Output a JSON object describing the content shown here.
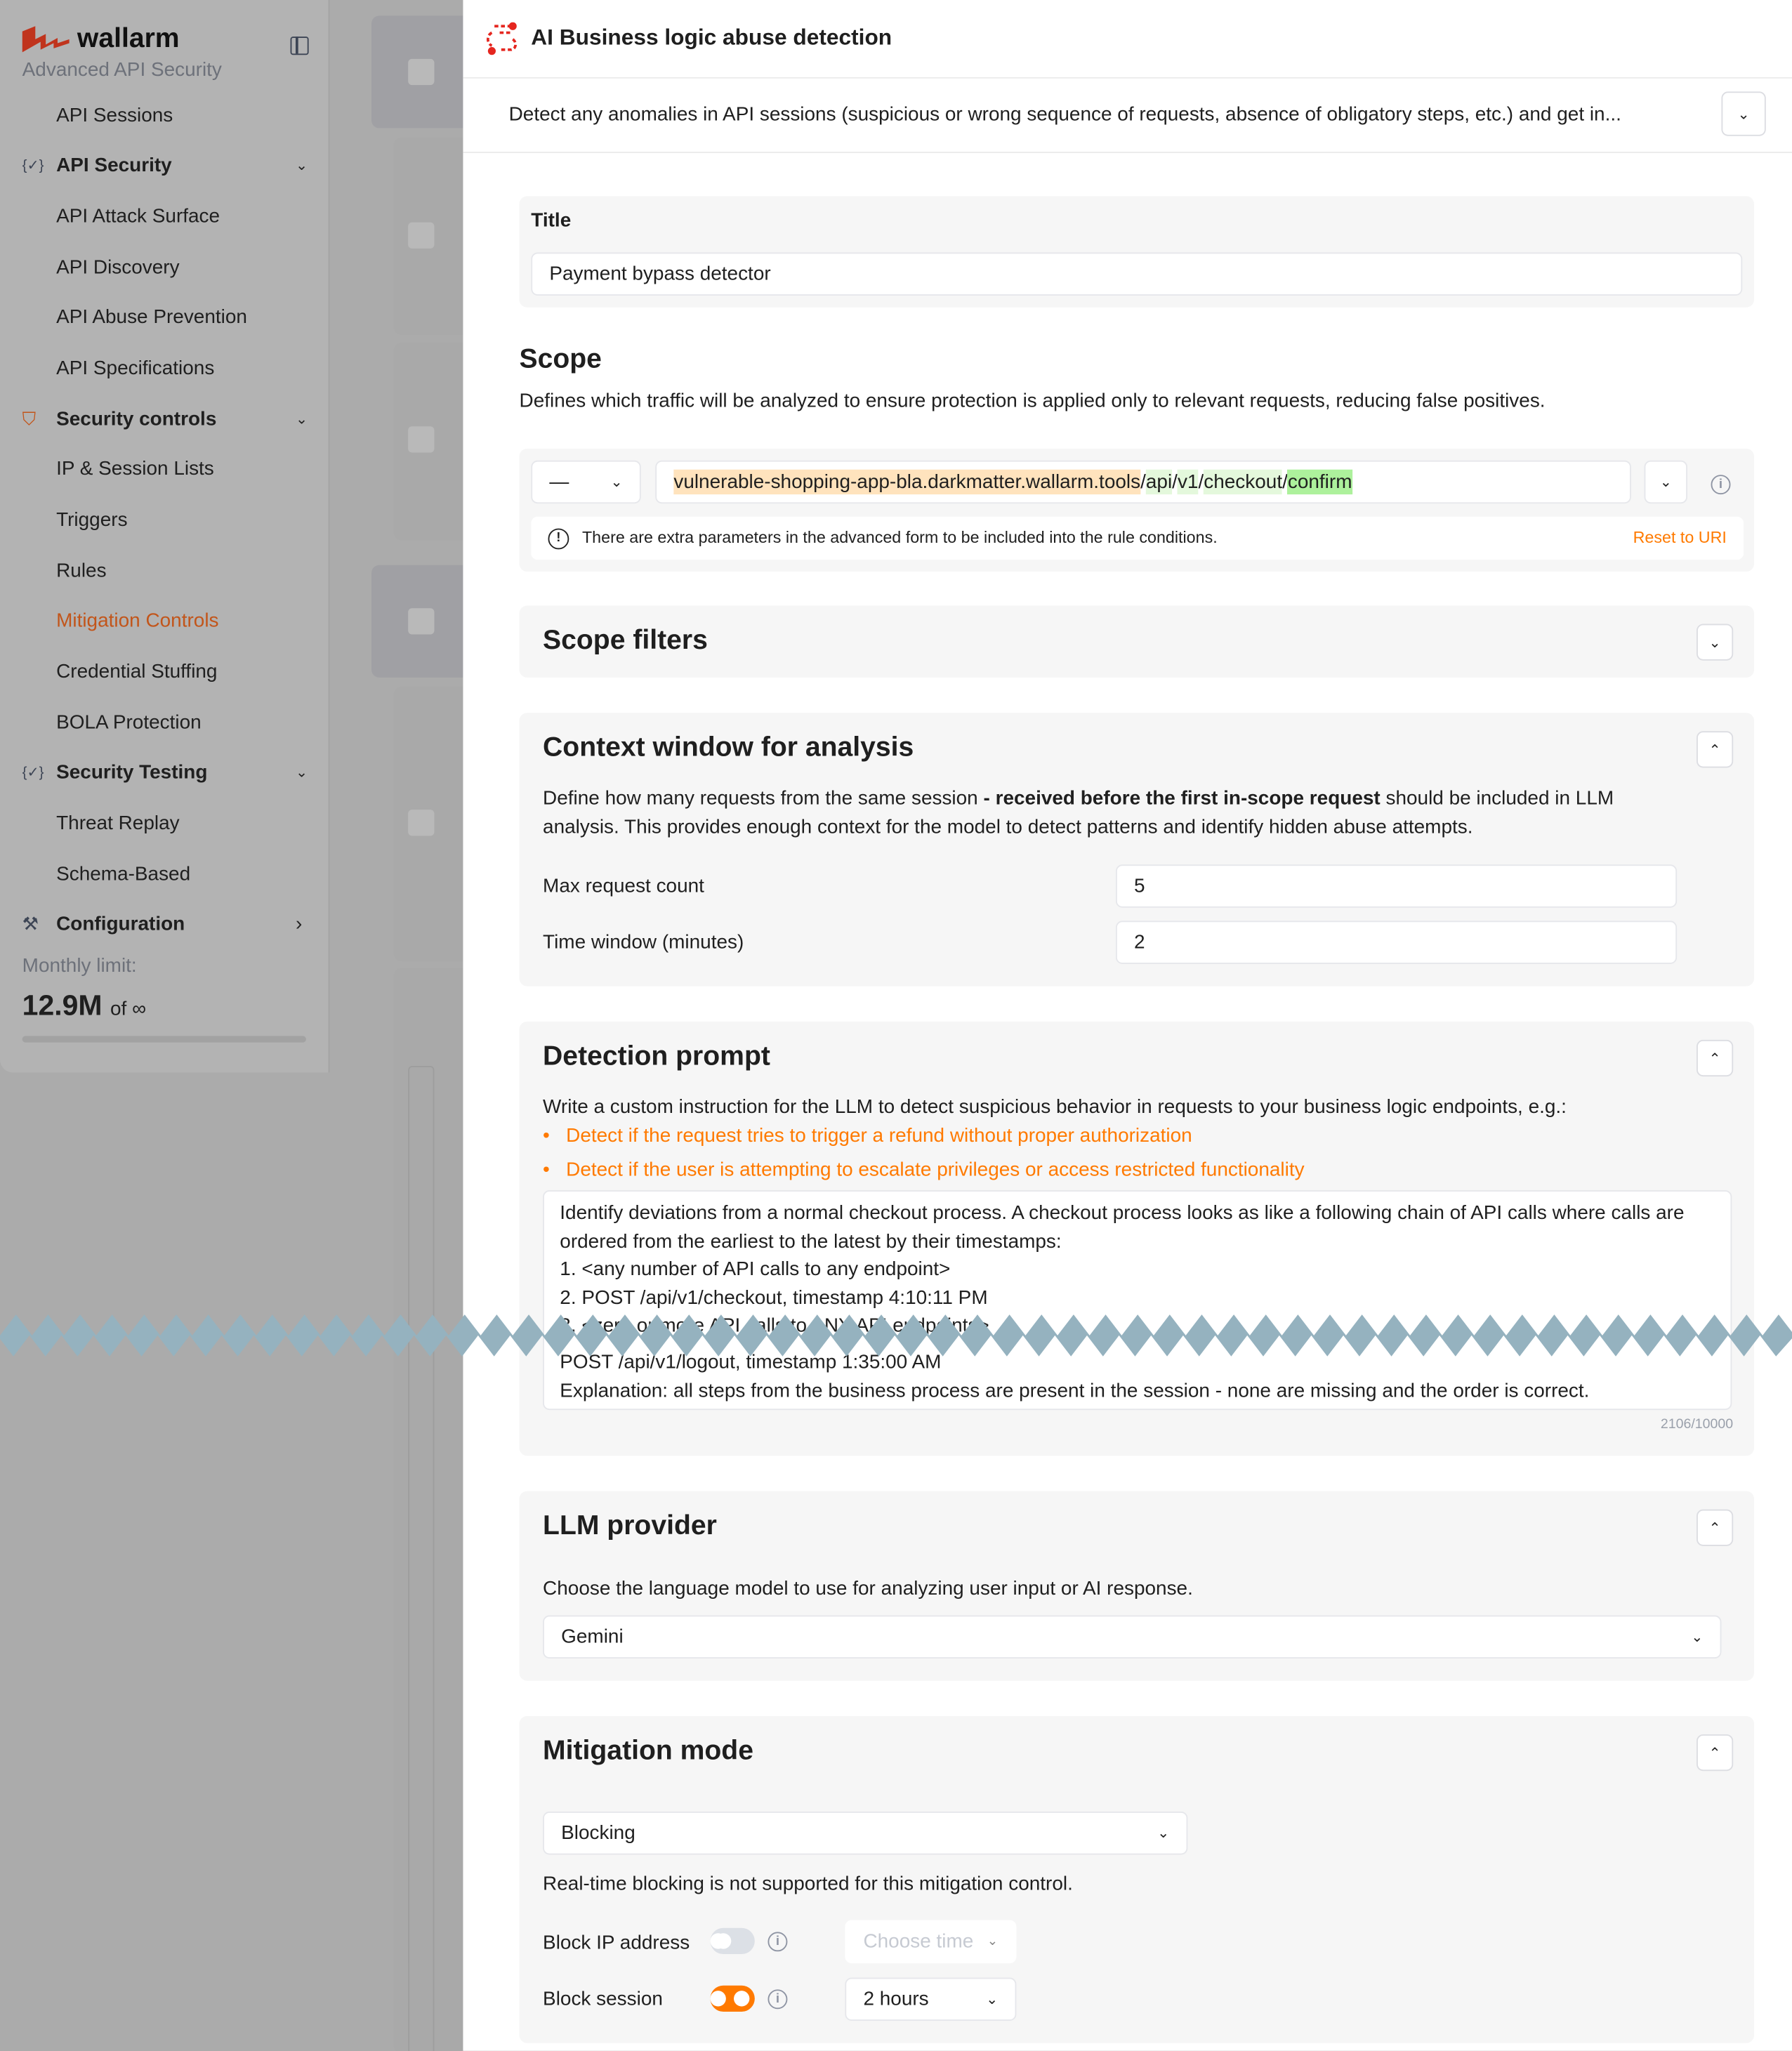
{
  "sidebar": {
    "brand": "wallarm",
    "subtitle": "Advanced API Security",
    "items": [
      {
        "label": "API Sessions",
        "type": "item"
      },
      {
        "label": "API Security",
        "type": "group",
        "icon": "braces-check-icon",
        "chevron": "down"
      },
      {
        "label": "API Attack Surface",
        "type": "item"
      },
      {
        "label": "API Discovery",
        "type": "item"
      },
      {
        "label": "API Abuse Prevention",
        "type": "item"
      },
      {
        "label": "API Specifications",
        "type": "item"
      },
      {
        "label": "Security controls",
        "type": "group",
        "icon": "shield-icon",
        "chevron": "down"
      },
      {
        "label": "IP & Session Lists",
        "type": "item"
      },
      {
        "label": "Triggers",
        "type": "item"
      },
      {
        "label": "Rules",
        "type": "item"
      },
      {
        "label": "Mitigation Controls",
        "type": "item",
        "active": true
      },
      {
        "label": "Credential Stuffing",
        "type": "item"
      },
      {
        "label": "BOLA Protection",
        "type": "item"
      },
      {
        "label": "Security Testing",
        "type": "group",
        "icon": "braces-check-icon",
        "chevron": "down"
      },
      {
        "label": "Threat Replay",
        "type": "item"
      },
      {
        "label": "Schema-Based",
        "type": "item"
      },
      {
        "label": "Configuration",
        "type": "group",
        "icon": "tools-icon",
        "chevron": "right"
      }
    ],
    "limit_label": "Monthly limit:",
    "limit_value": "12.9M",
    "limit_of": "of ∞"
  },
  "drawer": {
    "title": "AI Business logic abuse detection",
    "description": "Detect any anomalies in API sessions (suspicious or wrong sequence of requests, absence of obligatory steps, etc.) and get in...",
    "title_field": {
      "label": "Title",
      "value": "Payment bypass detector"
    },
    "scope": {
      "heading": "Scope",
      "description": "Defines which traffic will be analyzed to ensure protection is applied only to relevant requests, reducing false positives.",
      "method": "—",
      "url_host": "vulnerable-shopping-app-bla.darkmatter.wallarm.tools",
      "url_parts": [
        "api",
        "v1",
        "checkout",
        "confirm"
      ],
      "notice": "There are extra parameters in the advanced form to be included into the rule conditions.",
      "reset_label": "Reset to URI"
    },
    "scope_filters": {
      "heading": "Scope filters"
    },
    "context": {
      "heading": "Context window for analysis",
      "desc_pre": "Define how many requests from the same session ",
      "desc_bold": "- received before the first in-scope request",
      "desc_post": " should be included in LLM analysis. This provides enough context for the model to detect patterns and identify hidden abuse attempts.",
      "max_label": "Max request count",
      "max_value": "5",
      "time_label": "Time window (minutes)",
      "time_value": "2"
    },
    "prompt": {
      "heading": "Detection prompt",
      "description": "Write a custom instruction for the LLM to detect suspicious behavior in requests to your business logic endpoints, e.g.:",
      "examples": [
        "Detect if the request tries to trigger a refund without proper authorization",
        "Detect if the user is attempting to escalate privileges or access restricted functionality"
      ],
      "lines_top": [
        "Identify deviations from a normal checkout process. A checkout process looks as like a following chain of API calls where calls are ordered from the earliest to the latest by their timestamps:",
        "1. <any number of API calls to any endpoint>",
        "2. POST /api/v1/checkout, timestamp 4:10:11 PM",
        "3. <zero or more API calls to ANY API endpoints>"
      ],
      "lines_bottom": [
        "POST /api/v1/logout, timestamp 1:35:00 AM",
        "Explanation: all steps from the business process are present in the session - none are missing and the order is correct."
      ],
      "counter": "2106/10000"
    },
    "llm": {
      "heading": "LLM provider",
      "description": "Choose the language model to use for analyzing user input or AI response.",
      "selected": "Gemini"
    },
    "mitigation": {
      "heading": "Mitigation mode",
      "selected": "Blocking",
      "note": "Real-time blocking is not supported for this mitigation control.",
      "block_ip": {
        "label": "Block IP address",
        "enabled": false,
        "time_placeholder": "Choose time"
      },
      "block_session": {
        "label": "Block session",
        "enabled": true,
        "time": "2 hours"
      }
    }
  },
  "colors": {
    "accent": "#ff7a00",
    "brand": "#c0341d",
    "host_highlight": "#ffe3bd",
    "path_highlight": "#e4f8dc",
    "last_path_highlight": "#adf19c",
    "break_band": "#95b2bf"
  }
}
